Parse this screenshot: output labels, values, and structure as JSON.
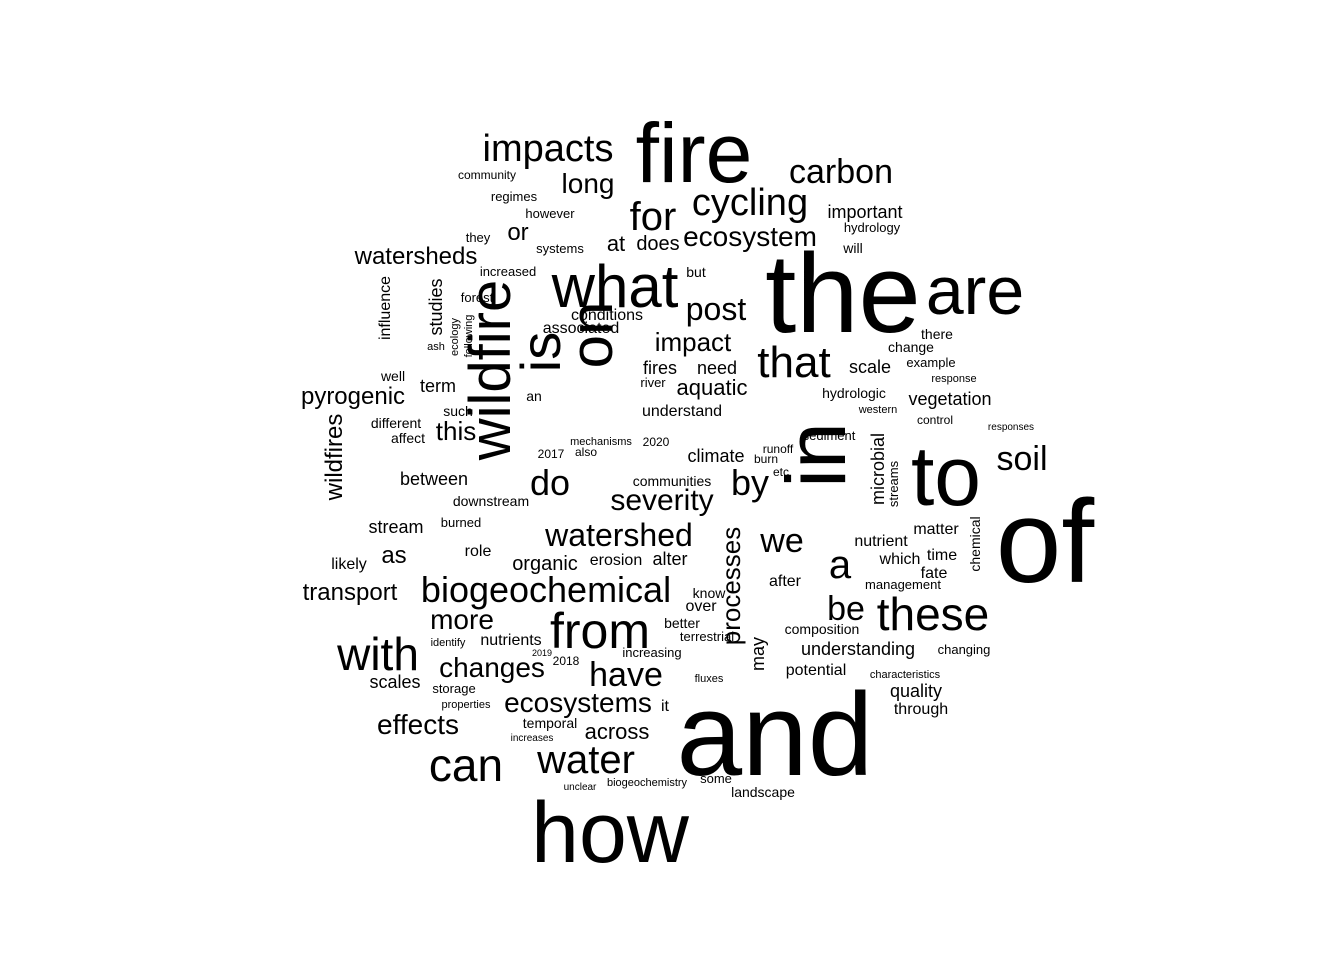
{
  "word_cloud": {
    "words": [
      "and",
      "the",
      "of",
      "how",
      "fire",
      "in",
      "to",
      "are",
      "wildfire",
      "on",
      "what",
      "is",
      "with",
      "from",
      "can",
      "these",
      "biogeochemical",
      "water",
      "watershed",
      "that",
      "for",
      "cycling",
      "impacts",
      "carbon",
      "ecosystem",
      "we",
      "a",
      "be",
      "by",
      "do",
      "have",
      "post",
      "soil",
      "severity",
      "changes",
      "more",
      "ecosystems",
      "effects",
      "long",
      "processes",
      "impact",
      "watersheds",
      "pyrogenic",
      "wildfires",
      "transport",
      "across",
      "aquatic",
      "this",
      "or",
      "at",
      "does",
      "as",
      "scales",
      "organic",
      "quality",
      "vegetation",
      "understanding",
      "term",
      "important",
      "need",
      "fires",
      "scale",
      "understand",
      "studies",
      "conditions",
      "associated",
      "between",
      "stream",
      "alter",
      "erosion",
      "over",
      "know",
      "nutrients",
      "potential",
      "composition",
      "after",
      "microbial",
      "nutrient",
      "climate",
      "through",
      "it",
      "may",
      "which",
      "time",
      "fate",
      "matter",
      "management",
      "influence",
      "communities",
      "change",
      "hydrologic",
      "sediment",
      "downstream",
      "role",
      "burned",
      "different",
      "affect",
      "likely",
      "well",
      "such",
      "but",
      "increased",
      "systems",
      "however",
      "they",
      "community",
      "regimes",
      "will",
      "hydrology",
      "there",
      "example",
      "response",
      "chemical",
      "streams",
      "temporal",
      "terrestrial",
      "fluxes",
      "increasing",
      "better",
      "storage",
      "characteristics",
      "changing",
      "some",
      "landscape",
      "biogeochemistry",
      "unclear",
      "increases",
      "properties",
      "identify",
      "ash",
      "ecology",
      "following",
      "forest",
      "river",
      "mechanisms",
      "also",
      "2020",
      "2017",
      "2018",
      "2019",
      "etc",
      "burn",
      "runoff",
      "an",
      "western",
      "control",
      "responses"
    ]
  }
}
